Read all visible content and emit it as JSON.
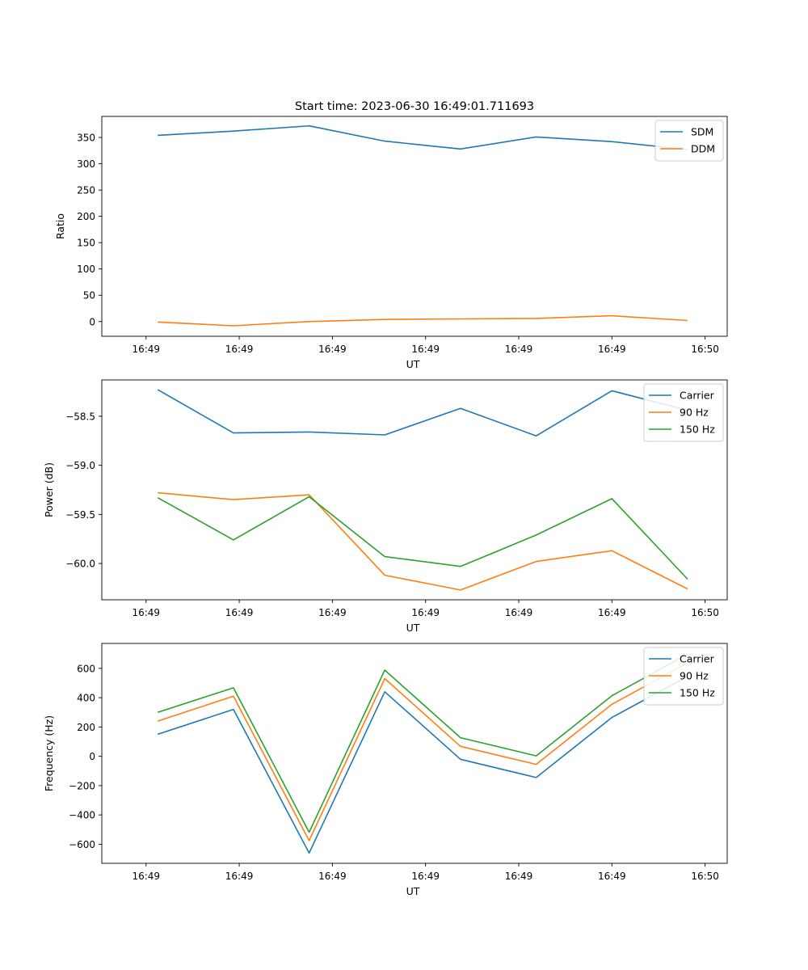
{
  "figure": {
    "title": "Start time: 2023-06-30 16:49:01.711693"
  },
  "chart_data": [
    {
      "type": "line",
      "title": "Start time: 2023-06-30 16:49:01.711693",
      "xlabel": "UT",
      "ylabel": "Ratio",
      "xticks": [
        "16:49",
        "16:49",
        "16:49",
        "16:49",
        "16:49",
        "16:49",
        "16:50"
      ],
      "xlim": [
        -0.38,
        4.99
      ],
      "ylim": [
        -28,
        390
      ],
      "yticks": [
        0,
        50,
        100,
        150,
        200,
        250,
        300,
        350
      ],
      "grid": false,
      "legend_position": "top-right",
      "x": [
        0.1,
        0.75,
        1.4,
        2.05,
        2.7,
        3.35,
        4.0,
        4.65
      ],
      "series": [
        {
          "name": "SDM",
          "color": "#1f77b4",
          "values": [
            354,
            362,
            372,
            343,
            328,
            351,
            342,
            327
          ]
        },
        {
          "name": "DDM",
          "color": "#ff7f0e",
          "values": [
            -1,
            -8,
            0,
            4,
            5,
            6,
            11,
            2
          ]
        }
      ]
    },
    {
      "type": "line",
      "title": "",
      "xlabel": "UT",
      "ylabel": "Power (dB)",
      "xticks": [
        "16:49",
        "16:49",
        "16:49",
        "16:49",
        "16:49",
        "16:49",
        "16:50"
      ],
      "xlim": [
        -0.38,
        4.99
      ],
      "ylim": [
        -60.37,
        -58.13
      ],
      "yticks": [
        -60.0,
        -59.5,
        -59.0,
        -58.5
      ],
      "ytick_labels": [
        "−60.0",
        "−59.5",
        "−59.0",
        "−58.5"
      ],
      "grid": false,
      "legend_position": "top-right",
      "x": [
        0.1,
        0.75,
        1.4,
        2.05,
        2.7,
        3.35,
        4.0,
        4.65
      ],
      "series": [
        {
          "name": "Carrier",
          "color": "#1f77b4",
          "values": [
            -58.23,
            -58.67,
            -58.66,
            -58.69,
            -58.42,
            -58.7,
            -58.24,
            -58.44
          ]
        },
        {
          "name": "90 Hz",
          "color": "#ff7f0e",
          "values": [
            -59.28,
            -59.35,
            -59.3,
            -60.12,
            -60.27,
            -59.98,
            -59.87,
            -60.26
          ]
        },
        {
          "name": "150 Hz",
          "color": "#2ca02c",
          "values": [
            -59.33,
            -59.76,
            -59.32,
            -59.93,
            -60.03,
            -59.71,
            -59.34,
            -60.16
          ]
        }
      ]
    },
    {
      "type": "line",
      "title": "",
      "xlabel": "UT",
      "ylabel": "Frequency (Hz)",
      "xticks": [
        "16:49",
        "16:49",
        "16:49",
        "16:49",
        "16:49",
        "16:49",
        "16:50"
      ],
      "xlim": [
        -0.38,
        4.99
      ],
      "ylim": [
        -730,
        770
      ],
      "yticks": [
        -600,
        -400,
        -200,
        0,
        200,
        400,
        600
      ],
      "ytick_labels": [
        "−600",
        "−400",
        "−200",
        "0",
        "200",
        "400",
        "600"
      ],
      "grid": false,
      "legend_position": "top-right",
      "x": [
        0.1,
        0.75,
        1.4,
        2.05,
        2.7,
        3.35,
        4.0,
        4.65
      ],
      "series": [
        {
          "name": "Carrier",
          "color": "#1f77b4",
          "values": [
            150,
            320,
            -660,
            440,
            -20,
            -145,
            265,
            545
          ]
        },
        {
          "name": "90 Hz",
          "color": "#ff7f0e",
          "values": [
            240,
            410,
            -575,
            530,
            68,
            -55,
            355,
            637
          ]
        },
        {
          "name": "150 Hz",
          "color": "#2ca02c",
          "values": [
            300,
            467,
            -518,
            588,
            127,
            3,
            413,
            697
          ]
        }
      ]
    }
  ]
}
